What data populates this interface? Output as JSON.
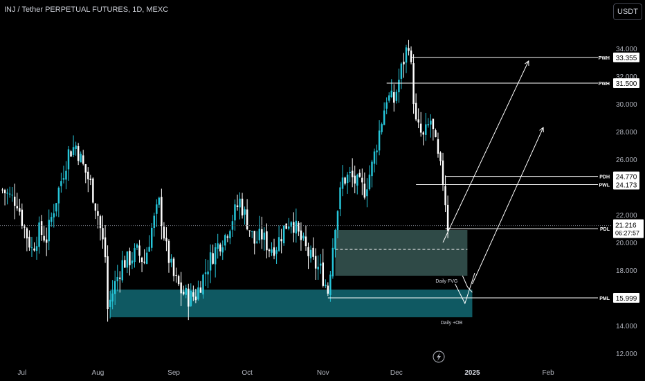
{
  "header": {
    "symbol_title": "INJ / Tether PERPETUAL FUTURES, 1D, MEXC",
    "currency_label": "USDT"
  },
  "colors": {
    "background": "#000000",
    "up": "#26c6da",
    "down": "#ffffff",
    "fvg_fill": "#2f4a47",
    "ob_fill": "#0f5962",
    "axis_text": "#b2b5be"
  },
  "chart_data": {
    "type": "candlestick",
    "ylim": [
      11,
      36
    ],
    "y_ticks": [
      "12.000",
      "14.000",
      "18.000",
      "20.000",
      "22.000",
      "26.000",
      "28.000",
      "30.000",
      "32.000",
      "34.000"
    ],
    "x_ticks": [
      "Jul",
      "Aug",
      "Sep",
      "Oct",
      "Nov",
      "Dec",
      "2025",
      "Feb"
    ],
    "x_tick_dates": [
      "2024-07-01",
      "2024-08-01",
      "2024-09-01",
      "2024-10-01",
      "2024-11-01",
      "2024-12-01",
      "2025-01-01",
      "2025-02-01"
    ],
    "last_price": "21.216",
    "countdown": "06:27:57",
    "close_path": [
      [
        "2024-06-23",
        23.8
      ],
      [
        "2024-06-26",
        23.3
      ],
      [
        "2024-06-29",
        23.0
      ],
      [
        "2024-07-02",
        21.0
      ],
      [
        "2024-07-05",
        19.5
      ],
      [
        "2024-07-08",
        20.8
      ],
      [
        "2024-07-11",
        20.3
      ],
      [
        "2024-07-14",
        22.5
      ],
      [
        "2024-07-17",
        24.5
      ],
      [
        "2024-07-20",
        26.5
      ],
      [
        "2024-07-23",
        27.0
      ],
      [
        "2024-07-26",
        25.5
      ],
      [
        "2024-07-29",
        24.2
      ],
      [
        "2024-08-01",
        22.0
      ],
      [
        "2024-08-04",
        19.0
      ],
      [
        "2024-08-05",
        15.2
      ],
      [
        "2024-08-08",
        17.0
      ],
      [
        "2024-08-11",
        18.5
      ],
      [
        "2024-08-14",
        18.8
      ],
      [
        "2024-08-17",
        19.3
      ],
      [
        "2024-08-20",
        18.6
      ],
      [
        "2024-08-23",
        21.0
      ],
      [
        "2024-08-26",
        22.8
      ],
      [
        "2024-08-29",
        19.5
      ],
      [
        "2024-09-01",
        17.5
      ],
      [
        "2024-09-04",
        16.5
      ],
      [
        "2024-09-07",
        16.0
      ],
      [
        "2024-09-10",
        16.2
      ],
      [
        "2024-09-13",
        17.5
      ],
      [
        "2024-09-16",
        18.8
      ],
      [
        "2024-09-19",
        19.8
      ],
      [
        "2024-09-22",
        20.5
      ],
      [
        "2024-09-25",
        21.8
      ],
      [
        "2024-09-28",
        23.0
      ],
      [
        "2024-10-01",
        21.5
      ],
      [
        "2024-10-04",
        20.0
      ],
      [
        "2024-10-07",
        20.5
      ],
      [
        "2024-10-10",
        19.6
      ],
      [
        "2024-10-13",
        19.8
      ],
      [
        "2024-10-16",
        21.0
      ],
      [
        "2024-10-19",
        21.8
      ],
      [
        "2024-10-22",
        20.5
      ],
      [
        "2024-10-25",
        19.5
      ],
      [
        "2024-10-28",
        18.5
      ],
      [
        "2024-10-31",
        18.0
      ],
      [
        "2024-11-03",
        16.5
      ],
      [
        "2024-11-06",
        21.5
      ],
      [
        "2024-11-09",
        24.5
      ],
      [
        "2024-11-12",
        24.8
      ],
      [
        "2024-11-15",
        24.2
      ],
      [
        "2024-11-18",
        23.8
      ],
      [
        "2024-11-21",
        25.5
      ],
      [
        "2024-11-24",
        28.0
      ],
      [
        "2024-11-27",
        30.5
      ],
      [
        "2024-11-30",
        30.2
      ],
      [
        "2024-12-03",
        32.5
      ],
      [
        "2024-12-06",
        34.5
      ],
      [
        "2024-12-09",
        28.5
      ],
      [
        "2024-12-12",
        27.5
      ],
      [
        "2024-12-15",
        28.8
      ],
      [
        "2024-12-18",
        26.0
      ],
      [
        "2024-12-20",
        24.5
      ],
      [
        "2024-12-21",
        23.0
      ],
      [
        "2024-12-22",
        21.216
      ]
    ],
    "levels": [
      {
        "label": "PWH",
        "value": "33.355",
        "from": "2024-12-07"
      },
      {
        "label": "PWH",
        "value": "31.500",
        "from": "2024-11-27"
      },
      {
        "label": "PDH",
        "value": "24.770",
        "from": "2024-12-21"
      },
      {
        "label": "PWL",
        "value": "24.173",
        "from": "2024-12-09"
      },
      {
        "label": "PDL",
        "value": "20.992",
        "from": "2024-12-21"
      },
      {
        "label": "PML",
        "value": "15.999",
        "from": "2024-11-03"
      }
    ],
    "zones": [
      {
        "label": "Daily FVG",
        "start": "2024-11-06",
        "end": "2024-12-30",
        "top": 20.9,
        "bottom": 17.6,
        "mid": 19.5
      },
      {
        "label": "Daily +OB",
        "start": "2024-08-06",
        "end": "2025-01-01",
        "top": 16.6,
        "bottom": 14.6
      }
    ],
    "projection_paths": [
      {
        "points": [
          [
            "2024-12-20",
            20.0
          ],
          [
            "2025-01-24",
            33.1
          ]
        ]
      },
      {
        "points": [
          [
            "2024-12-28",
            17.6
          ],
          [
            "2024-12-30",
            16.8
          ],
          [
            "2025-01-01",
            16.4
          ]
        ]
      },
      {
        "points": [
          [
            "2024-12-25",
            17.0
          ],
          [
            "2024-12-29",
            15.6
          ],
          [
            "2025-01-02",
            17.8
          ]
        ]
      },
      {
        "points": [
          [
            "2025-01-01",
            17.0
          ],
          [
            "2025-01-30",
            28.3
          ]
        ]
      }
    ]
  }
}
